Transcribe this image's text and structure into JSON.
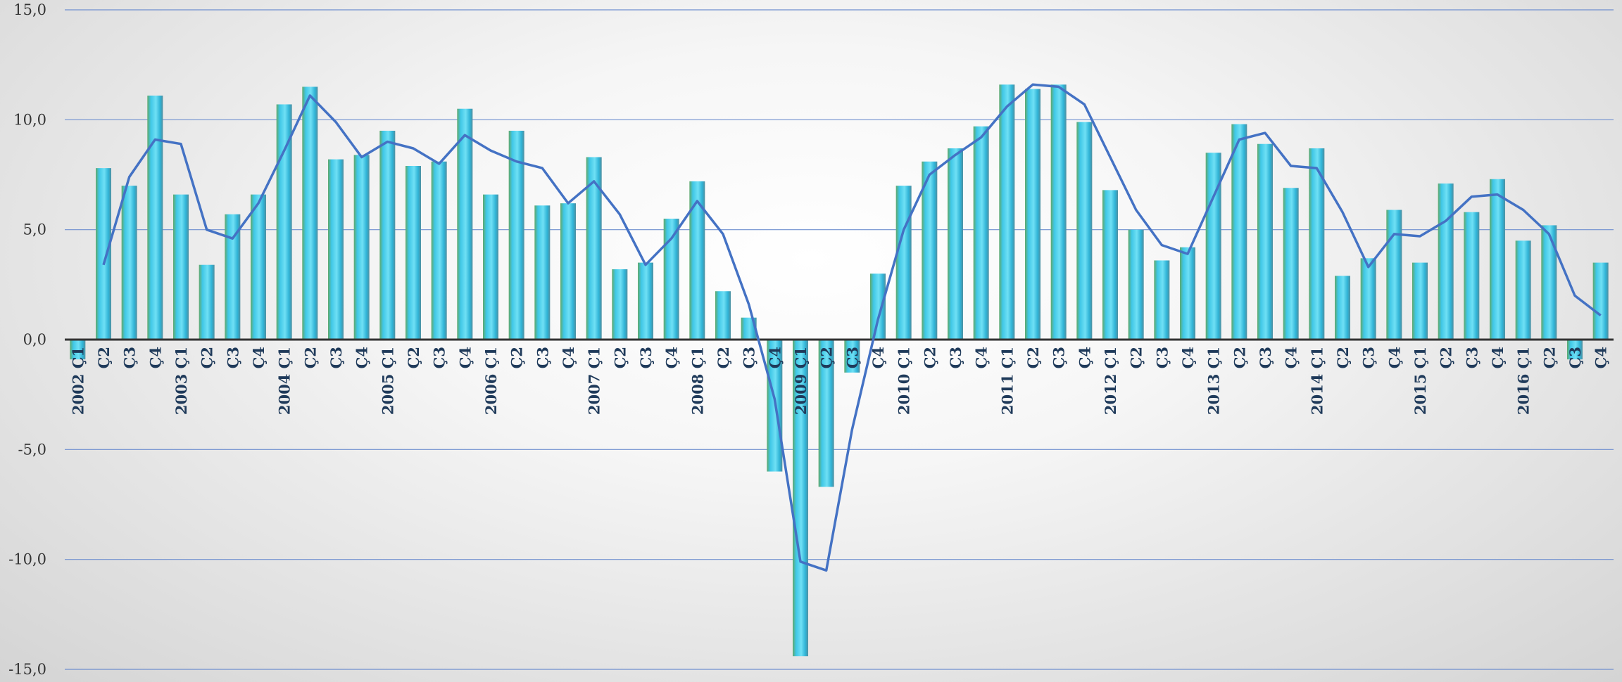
{
  "chart_data": {
    "type": "bar",
    "title": "",
    "xlabel": "",
    "ylabel": "",
    "ylim": [
      -15,
      15
    ],
    "yticks": [
      15,
      10,
      5,
      0,
      -5,
      -10,
      -15
    ],
    "ytick_labels": [
      "15,0",
      "10,0",
      "5,0",
      "0,0",
      "-5,0",
      "-10,0",
      "-15,0"
    ],
    "grid": true,
    "legend": "none",
    "colors": {
      "bar_main": "#3fc7e6",
      "bar_edge": "#5fa86a",
      "line": "#4472c4",
      "grid": "#6f8fcf",
      "zero_line": "#333333"
    },
    "categories": [
      "2002 Ç1",
      "Ç2",
      "Ç3",
      "Ç4",
      "2003 Ç1",
      "Ç2",
      "Ç3",
      "Ç4",
      "2004 Ç1",
      "Ç2",
      "Ç3",
      "Ç4",
      "2005 Ç1",
      "Ç2",
      "Ç3",
      "Ç4",
      "2006 Ç1",
      "Ç2",
      "Ç3",
      "Ç4",
      "2007 Ç1",
      "Ç2",
      "Ç3",
      "Ç4",
      "2008 Ç1",
      "Ç2",
      "Ç3",
      "Ç4",
      "2009 Ç1",
      "Ç2",
      "Ç3",
      "Ç4",
      "2010 Ç1",
      "Ç2",
      "Ç3",
      "Ç4",
      "2011 Ç1",
      "Ç2",
      "Ç3",
      "Ç4",
      "2012 Ç1",
      "Ç2",
      "Ç3",
      "Ç4",
      "2013 Ç1",
      "Ç2",
      "Ç3",
      "Ç4",
      "2014 Ç1",
      "Ç2",
      "Ç3",
      "Ç4",
      "2015 Ç1",
      "Ç2",
      "Ç3",
      "Ç4",
      "2016 Ç1",
      "Ç2",
      "Ç3",
      "Ç4"
    ],
    "series": [
      {
        "type": "bar",
        "values": [
          -0.9,
          7.8,
          7.0,
          11.1,
          6.6,
          3.4,
          5.7,
          6.6,
          10.7,
          11.5,
          8.2,
          8.4,
          9.5,
          7.9,
          8.1,
          10.5,
          6.6,
          9.5,
          6.1,
          6.2,
          8.3,
          3.2,
          3.5,
          5.5,
          7.2,
          2.2,
          1.0,
          -6.0,
          -14.4,
          -6.7,
          -1.5,
          3.0,
          7.0,
          8.1,
          8.7,
          9.7,
          11.6,
          11.4,
          11.6,
          9.9,
          6.8,
          5.0,
          3.6,
          4.2,
          8.5,
          9.8,
          8.9,
          6.9,
          8.7,
          2.9,
          3.7,
          5.9,
          3.5,
          7.1,
          5.8,
          7.3,
          4.5,
          5.2,
          -0.9,
          3.5
        ]
      },
      {
        "type": "line",
        "values": [
          null,
          3.4,
          7.4,
          9.1,
          8.9,
          5.0,
          4.6,
          6.2,
          8.6,
          11.1,
          9.9,
          8.3,
          9.0,
          8.7,
          8.0,
          9.3,
          8.6,
          8.1,
          7.8,
          6.2,
          7.2,
          5.7,
          3.4,
          4.6,
          6.3,
          4.8,
          1.6,
          -2.7,
          -10.1,
          -10.5,
          -4.1,
          0.9,
          5.0,
          7.5,
          8.4,
          9.2,
          10.6,
          11.6,
          11.5,
          10.7,
          8.3,
          5.9,
          4.3,
          3.9,
          6.5,
          9.1,
          9.4,
          7.9,
          7.8,
          5.8,
          3.3,
          4.8,
          4.7,
          5.4,
          6.5,
          6.6,
          5.9,
          4.8,
          2.0,
          1.1
        ]
      }
    ]
  }
}
